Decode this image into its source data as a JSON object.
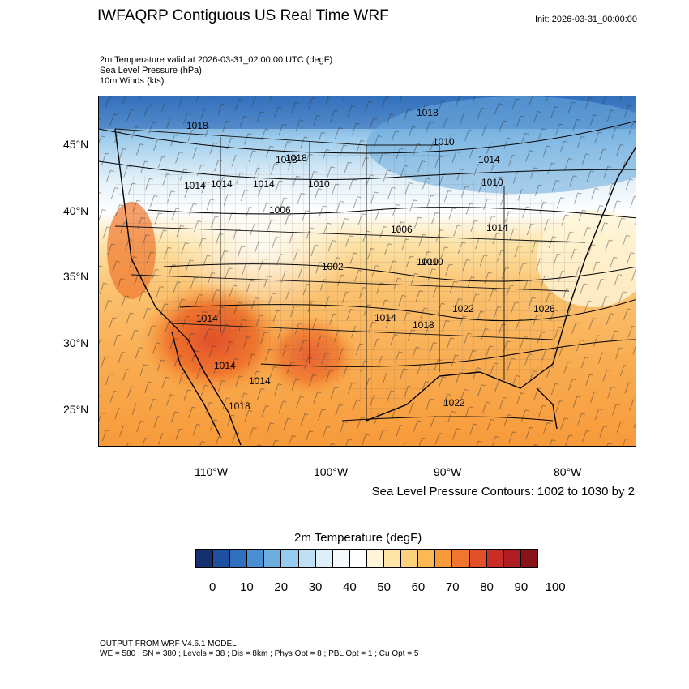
{
  "header": {
    "title": "IWFAQRP Contiguous US Real Time WRF",
    "init": "Init: 2026-03-31_00:00:00",
    "fields": [
      "2m Temperature valid at 2026-03-31_02:00:00 UTC   (degF)",
      "Sea Level Pressure   (hPa)",
      "10m Winds   (kts)"
    ]
  },
  "map": {
    "lat_labels": [
      "45°N",
      "40°N",
      "35°N",
      "30°N",
      "25°N"
    ],
    "lon_labels": [
      "110°W",
      "100°W",
      "90°W",
      "80°W"
    ],
    "isobar_labels": [
      "1018",
      "1018",
      "1014",
      "1018",
      "1014",
      "1014",
      "1010",
      "1006",
      "1018",
      "1010",
      "1014",
      "1010",
      "1006",
      "1014",
      "1010",
      "1002",
      "1010",
      "1014",
      "1018",
      "1014",
      "1022",
      "1026",
      "1014",
      "1014",
      "1018",
      "1022"
    ],
    "contour_note": "Sea Level Pressure Contours: 1002 to 1030 by 2"
  },
  "colorbar": {
    "title": "2m Temperature  (degF)",
    "colors": [
      "#14306e",
      "#1e4fa0",
      "#2f6fbf",
      "#4a8ed3",
      "#6daedf",
      "#95cbec",
      "#bde0f3",
      "#ddeff8",
      "#f4f9fc",
      "#ffffff",
      "#fff5d8",
      "#ffe6a8",
      "#fdd27e",
      "#fbb855",
      "#f79a3a",
      "#ef762e",
      "#e2502a",
      "#c92d26",
      "#ad1d22",
      "#8a1219"
    ],
    "tick_labels": [
      "0",
      "10",
      "20",
      "30",
      "40",
      "50",
      "60",
      "70",
      "80",
      "90",
      "100"
    ]
  },
  "footer": {
    "line1": "OUTPUT FROM WRF V4.6.1 MODEL",
    "line2": "WE = 580 ; SN = 380 ; Levels = 38 ; Dis = 8km ; Phys Opt = 8 ; PBL Opt = 1 ; Cu Opt = 5"
  }
}
